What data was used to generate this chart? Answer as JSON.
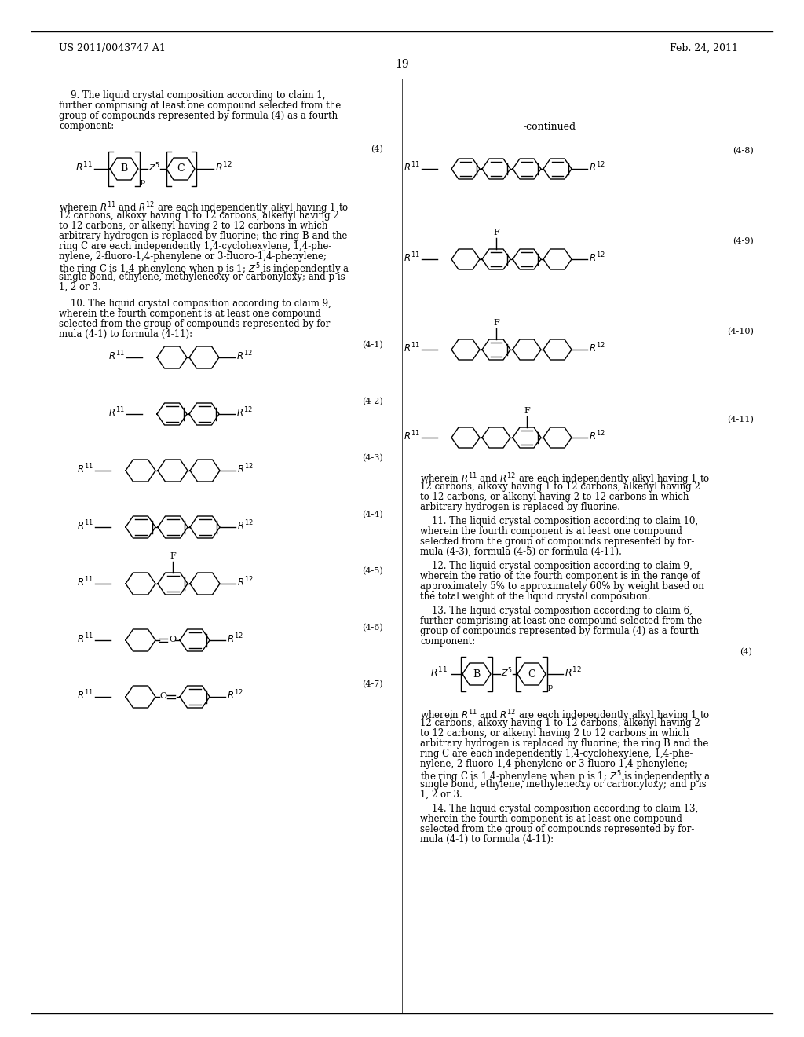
{
  "background_color": "#ffffff",
  "header_left": "US 2011/0043747 A1",
  "header_right": "Feb. 24, 2011",
  "page_number": "19",
  "figsize": [
    10.24,
    13.2
  ],
  "dpi": 100
}
